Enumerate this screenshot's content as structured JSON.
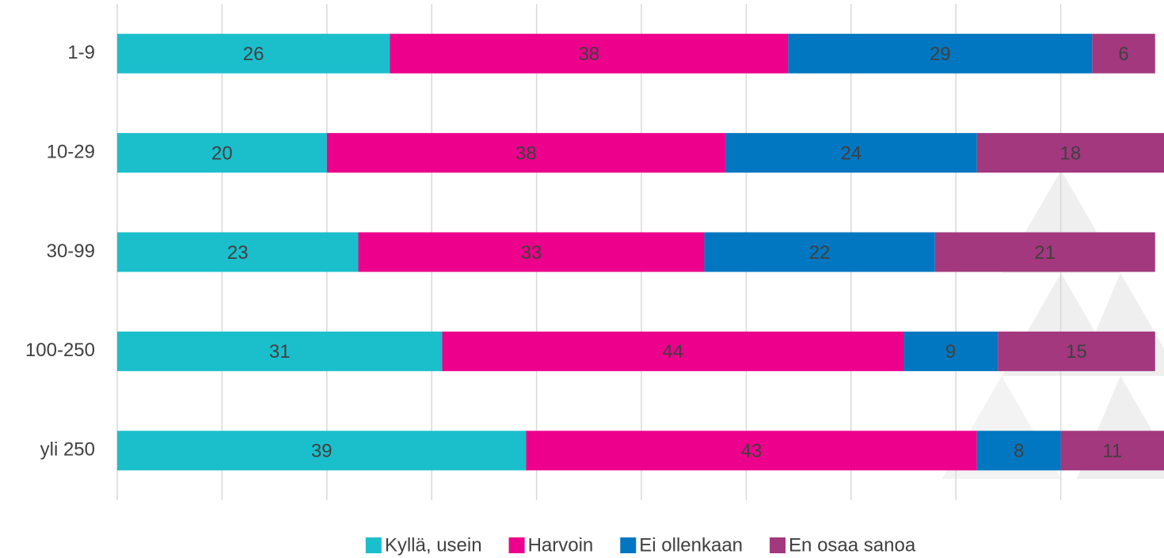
{
  "chart_data": {
    "type": "stacked_barh",
    "categories": [
      "1-9",
      "10-29",
      "30-99",
      "100-250",
      "yli 250"
    ],
    "series": [
      {
        "name": "Kyllä, usein",
        "color": "#1bbfcc",
        "values": [
          26,
          20,
          23,
          31,
          39
        ]
      },
      {
        "name": "Harvoin",
        "color": "#ec008c",
        "values": [
          38,
          38,
          33,
          44,
          43
        ]
      },
      {
        "name": "Ei ollenkaan",
        "color": "#0077c0",
        "values": [
          29,
          24,
          22,
          9,
          8
        ]
      },
      {
        "name": "En osaa sanoa",
        "color": "#a3387f",
        "values": [
          6,
          18,
          21,
          15,
          11
        ]
      }
    ],
    "xlim": [
      0,
      100
    ],
    "xticks": [
      0,
      10,
      20,
      30,
      40,
      50,
      60,
      70,
      80,
      90,
      100
    ],
    "grid": true,
    "legend": "bottom"
  }
}
